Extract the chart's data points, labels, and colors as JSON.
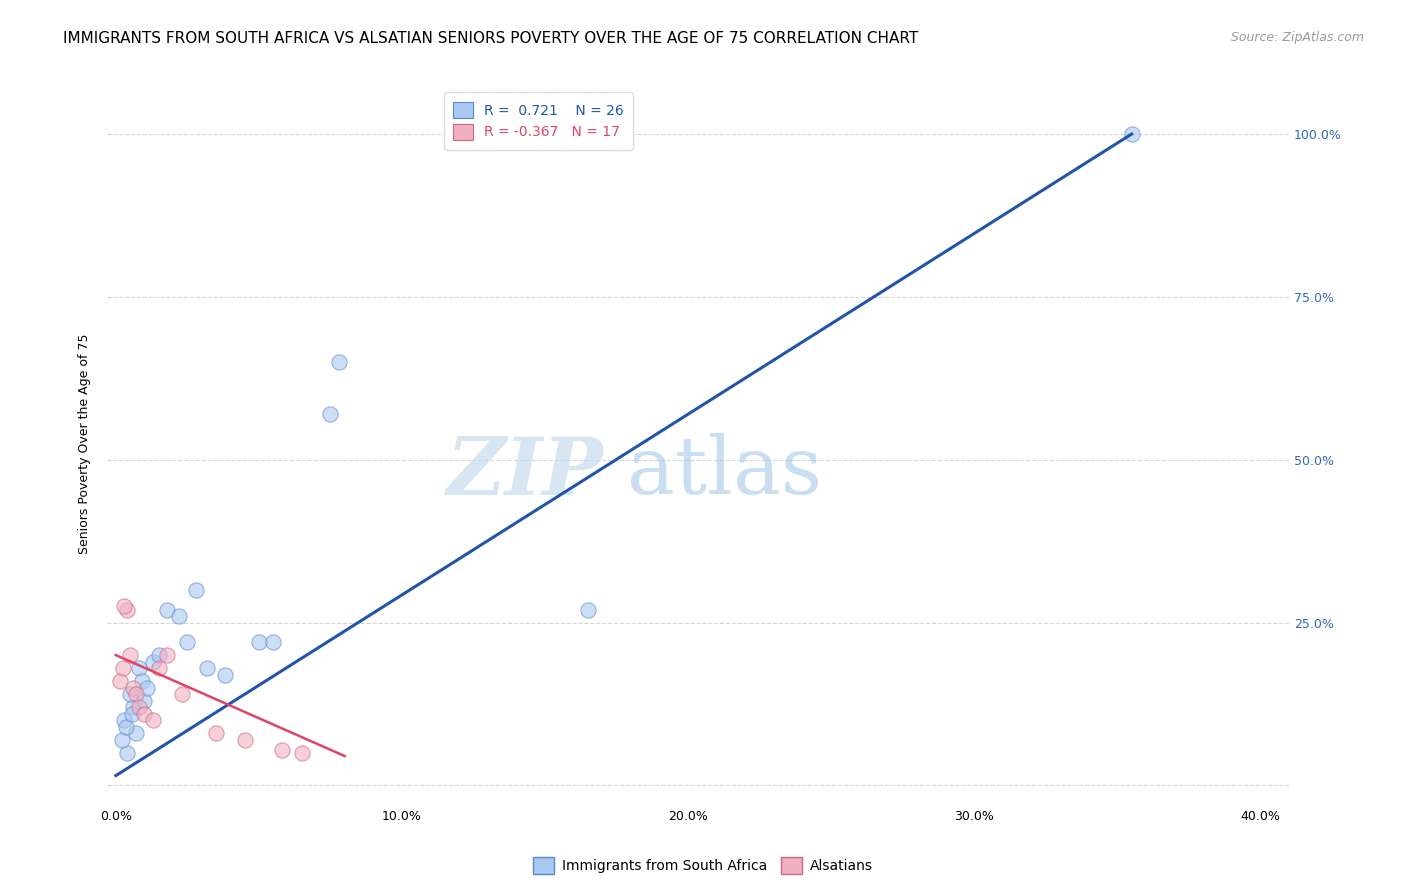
{
  "title": "IMMIGRANTS FROM SOUTH AFRICA VS ALSATIAN SENIORS POVERTY OVER THE AGE OF 75 CORRELATION CHART",
  "source": "Source: ZipAtlas.com",
  "ylabel": "Seniors Poverty Over the Age of 75",
  "xlabel_ticks": [
    "0.0%",
    "10.0%",
    "20.0%",
    "30.0%",
    "40.0%"
  ],
  "xlabel_vals": [
    0,
    10,
    20,
    30,
    40
  ],
  "ylabel_ticks": [
    "",
    "25.0%",
    "50.0%",
    "75.0%",
    "100.0%"
  ],
  "ylabel_vals": [
    0,
    25,
    50,
    75,
    100
  ],
  "xlim": [
    -0.3,
    41
  ],
  "ylim": [
    -3,
    108
  ],
  "blue_label": "Immigrants from South Africa",
  "pink_label": "Alsatians",
  "R_blue": 0.721,
  "N_blue": 26,
  "R_pink": -0.367,
  "N_pink": 17,
  "blue_scatter_x": [
    0.4,
    0.6,
    0.8,
    0.5,
    0.3,
    0.7,
    1.0,
    0.2,
    0.35,
    0.55,
    0.9,
    1.1,
    1.3,
    1.5,
    1.8,
    2.2,
    2.5,
    2.8,
    3.2,
    3.8,
    5.0,
    5.5,
    7.5,
    7.8,
    16.5,
    35.5
  ],
  "blue_scatter_y": [
    5.0,
    12.0,
    18.0,
    14.0,
    10.0,
    8.0,
    13.0,
    7.0,
    9.0,
    11.0,
    16.0,
    15.0,
    19.0,
    20.0,
    27.0,
    26.0,
    22.0,
    30.0,
    18.0,
    17.0,
    22.0,
    22.0,
    57.0,
    65.0,
    27.0,
    100.0
  ],
  "pink_scatter_x": [
    0.15,
    0.25,
    0.4,
    0.3,
    0.5,
    0.6,
    0.7,
    0.8,
    1.0,
    1.3,
    1.5,
    1.8,
    2.3,
    3.5,
    4.5,
    5.8,
    6.5
  ],
  "pink_scatter_y": [
    16.0,
    18.0,
    27.0,
    27.5,
    20.0,
    15.0,
    14.0,
    12.0,
    11.0,
    10.0,
    18.0,
    20.0,
    14.0,
    8.0,
    7.0,
    5.5,
    5.0
  ],
  "blue_line_x": [
    0.0,
    35.5
  ],
  "blue_line_y": [
    1.5,
    100.0
  ],
  "pink_line_x": [
    0.0,
    8.0
  ],
  "pink_line_y": [
    20.0,
    4.5
  ],
  "watermark_zip": "ZIP",
  "watermark_atlas": "atlas",
  "title_fontsize": 11,
  "source_fontsize": 9,
  "label_fontsize": 9,
  "tick_fontsize": 9,
  "legend_fontsize": 10,
  "blue_color": "#aac8f0",
  "blue_edge_color": "#5588cc",
  "blue_line_color": "#2255aa",
  "pink_color": "#f0b0c0",
  "pink_edge_color": "#cc6688",
  "pink_line_color": "#dd4466",
  "grid_color": "#cccccc",
  "background_color": "#ffffff",
  "scatter_size": 120,
  "scatter_alpha": 0.6,
  "right_tick_color": "#3366bb"
}
